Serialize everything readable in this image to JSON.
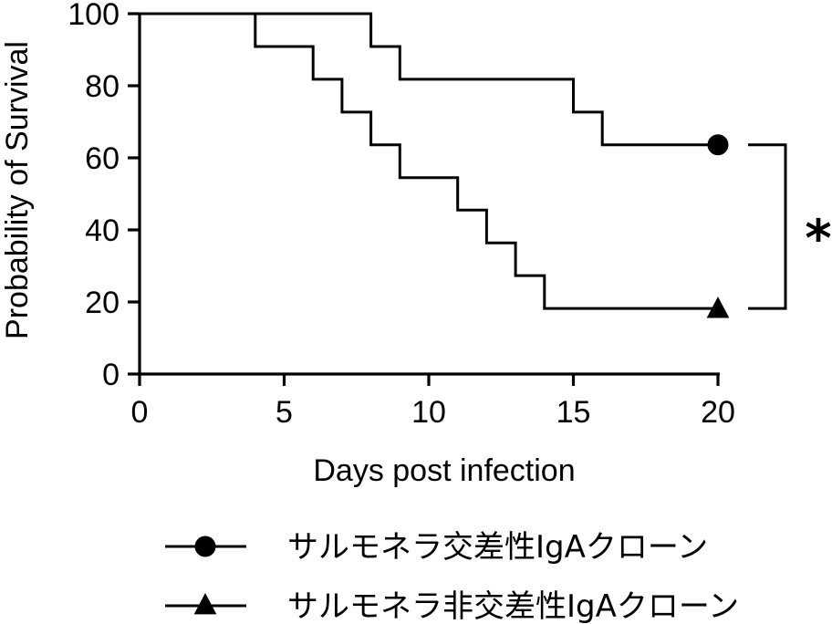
{
  "chart_data": {
    "type": "line",
    "subtype": "kaplan-meier-survival",
    "title": "",
    "xlabel": "Days post infection",
    "ylabel": "Probability of Survival",
    "xlim": [
      0,
      20
    ],
    "ylim": [
      0,
      100
    ],
    "x_ticks": [
      0,
      5,
      10,
      15,
      20
    ],
    "y_ticks": [
      0,
      20,
      40,
      60,
      80,
      100
    ],
    "grid": false,
    "legend_position": "bottom",
    "series": [
      {
        "name": "サルモネラ交差性IgAクローン",
        "marker": "circle",
        "color": "#000000",
        "steps": [
          {
            "x": 0,
            "y": 100
          },
          {
            "x": 8,
            "y": 90.9
          },
          {
            "x": 9,
            "y": 81.8
          },
          {
            "x": 15,
            "y": 72.7
          },
          {
            "x": 16,
            "y": 63.6
          }
        ],
        "end": {
          "x": 20,
          "y": 63.6
        }
      },
      {
        "name": "サルモネラ非交差性IgAクローン",
        "marker": "triangle",
        "color": "#000000",
        "steps": [
          {
            "x": 0,
            "y": 100
          },
          {
            "x": 4,
            "y": 90.9
          },
          {
            "x": 6,
            "y": 81.8
          },
          {
            "x": 7,
            "y": 72.7
          },
          {
            "x": 8,
            "y": 63.6
          },
          {
            "x": 9,
            "y": 54.5
          },
          {
            "x": 11,
            "y": 45.5
          },
          {
            "x": 12,
            "y": 36.4
          },
          {
            "x": 13,
            "y": 27.3
          },
          {
            "x": 14,
            "y": 18.2
          }
        ],
        "end": {
          "x": 20,
          "y": 18.2
        }
      }
    ],
    "annotations": [
      {
        "text": "*",
        "type": "significance-bracket",
        "between": [
          0,
          1
        ]
      }
    ]
  }
}
